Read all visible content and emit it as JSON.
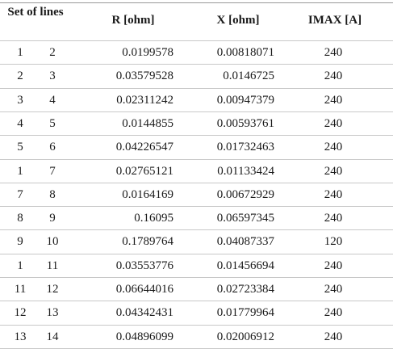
{
  "table": {
    "header": [
      "Set of lines",
      "R [ohm]",
      "X [ohm]",
      "IMAX [A]"
    ],
    "rows": [
      [
        "1",
        "2",
        "0.0199578",
        "0.00818071",
        "240"
      ],
      [
        "2",
        "3",
        "0.03579528",
        "0.0146725",
        "240"
      ],
      [
        "3",
        "4",
        "0.02311242",
        "0.00947379",
        "240"
      ],
      [
        "4",
        "5",
        "0.0144855",
        "0.00593761",
        "240"
      ],
      [
        "5",
        "6",
        "0.04226547",
        "0.01732463",
        "240"
      ],
      [
        "1",
        "7",
        "0.02765121",
        "0.01133424",
        "240"
      ],
      [
        "7",
        "8",
        "0.0164169",
        "0.00672929",
        "240"
      ],
      [
        "8",
        "9",
        "0.16095",
        "0.06597345",
        "240"
      ],
      [
        "9",
        "10",
        "0.1789764",
        "0.04087337",
        "120"
      ],
      [
        "1",
        "11",
        "0.03553776",
        "0.01456694",
        "240"
      ],
      [
        "11",
        "12",
        "0.06644016",
        "0.02723384",
        "240"
      ],
      [
        "12",
        "13",
        "0.04342431",
        "0.01779964",
        "240"
      ],
      [
        "13",
        "14",
        "0.04896099",
        "0.02006912",
        "240"
      ]
    ]
  }
}
